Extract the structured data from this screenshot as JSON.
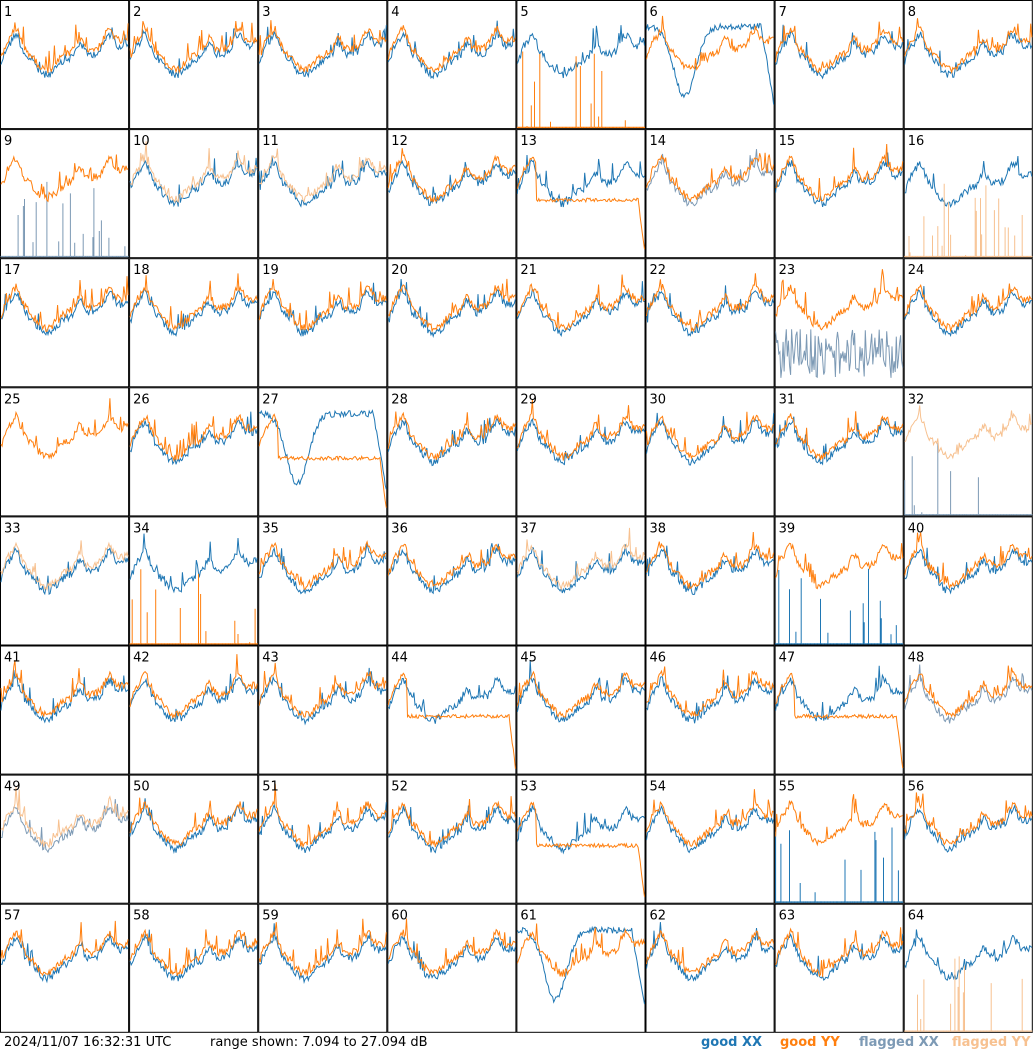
{
  "chart_data": {
    "type": "line",
    "layout": "8x8 small multiples",
    "panels": [
      1,
      2,
      3,
      4,
      5,
      6,
      7,
      8,
      9,
      10,
      11,
      12,
      13,
      14,
      15,
      16,
      17,
      18,
      19,
      20,
      21,
      22,
      23,
      24,
      25,
      26,
      27,
      28,
      29,
      30,
      31,
      32,
      33,
      34,
      35,
      36,
      37,
      38,
      39,
      40,
      41,
      42,
      43,
      44,
      45,
      46,
      47,
      48,
      49,
      50,
      51,
      52,
      53,
      54,
      55,
      56,
      57,
      58,
      59,
      60,
      61,
      62,
      63,
      64
    ],
    "range_db": [
      7.094,
      27.094
    ],
    "series": [
      {
        "name": "good XX",
        "color": "#1f77b4"
      },
      {
        "name": "good YY",
        "color": "#ff7f0e"
      },
      {
        "name": "flagged XX",
        "color": "#7d9ab5"
      },
      {
        "name": "flagged YY",
        "color": "#f7c190"
      }
    ],
    "panel_status": {
      "5": {
        "xx": "good",
        "yy": "spikes"
      },
      "6": {
        "xx": "dip",
        "yy": "good"
      },
      "9": {
        "xx": "flagged-spikes",
        "yy": "good"
      },
      "10": {
        "xx": "good",
        "yy": "flagged"
      },
      "11": {
        "xx": "good",
        "yy": "flagged"
      },
      "13": {
        "xx": "good",
        "yy": "flat"
      },
      "14": {
        "xx": "flagged",
        "yy": "good"
      },
      "16": {
        "xx": "good",
        "yy": "flagged-spikes"
      },
      "23": {
        "xx": "flagged-noise",
        "yy": "good"
      },
      "25": {
        "xx": "none",
        "yy": "good"
      },
      "27": {
        "xx": "dip",
        "yy": "flat"
      },
      "32": {
        "xx": "flagged-spikes",
        "yy": "flagged"
      },
      "33": {
        "xx": "good",
        "yy": "flagged"
      },
      "34": {
        "xx": "good",
        "yy": "spikes"
      },
      "37": {
        "xx": "good",
        "yy": "flagged"
      },
      "39": {
        "xx": "spikes",
        "yy": "good"
      },
      "44": {
        "xx": "good",
        "yy": "flat"
      },
      "45": {
        "xx": "good",
        "yy": "good"
      },
      "47": {
        "xx": "good",
        "yy": "flat"
      },
      "48": {
        "xx": "flagged",
        "yy": "good"
      },
      "49": {
        "xx": "flagged",
        "yy": "flagged"
      },
      "53": {
        "xx": "good",
        "yy": "flat"
      },
      "55": {
        "xx": "spikes",
        "yy": "good"
      },
      "61": {
        "xx": "dip",
        "yy": "good"
      },
      "64": {
        "xx": "good",
        "yy": "flagged-spikes"
      }
    }
  },
  "footer": {
    "timestamp": "2024/11/07 16:32:31 UTC",
    "range": "range shown: 7.094 to 27.094 dB",
    "legend": {
      "good_xx": "good XX",
      "good_yy": "good YY",
      "flagged_xx": "flagged XX",
      "flagged_yy": "flagged YY"
    }
  }
}
